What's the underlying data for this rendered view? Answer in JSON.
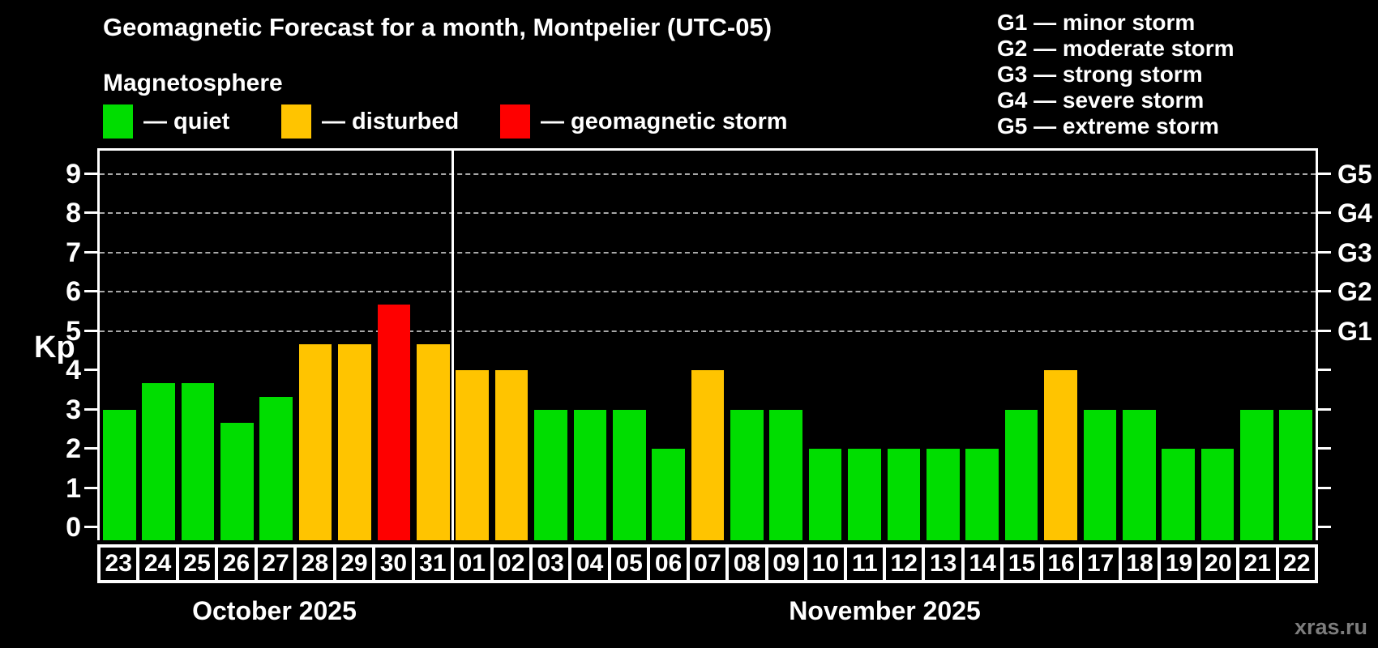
{
  "header": {
    "title": "Geomagnetic Forecast for a month, Montpelier (UTC-05)",
    "subtitle": "Magnetosphere"
  },
  "colors": {
    "quiet": "#00dd00",
    "disturbed": "#ffc400",
    "storm": "#fe0000",
    "grid": "#a8a8a8",
    "axis": "#ffffff",
    "background": "#000000",
    "watermark": "#7d7d7d"
  },
  "legend": {
    "items": [
      {
        "key": "quiet",
        "label": "— quiet"
      },
      {
        "key": "disturbed",
        "label": "— disturbed"
      },
      {
        "key": "storm",
        "label": "— geomagnetic storm"
      }
    ]
  },
  "storm_scale": [
    "G1 — minor storm",
    "G2 — moderate storm",
    "G3 — strong storm",
    "G4 — severe storm",
    "G5 — extreme storm"
  ],
  "watermark": "xras.ru",
  "chart_data": {
    "type": "bar",
    "title": "Geomagnetic Forecast for a month, Montpelier (UTC-05)",
    "subtitle": "Magnetosphere",
    "ylabel": "Kp",
    "ylim": [
      0,
      9.5
    ],
    "yticks": [
      0,
      1,
      2,
      3,
      4,
      5,
      6,
      7,
      8,
      9
    ],
    "grid": "dashed horizontal lines at Kp 5..9 only",
    "legend_position": "top-left",
    "right_axis": [
      {
        "kp": 5,
        "label": "G1"
      },
      {
        "kp": 6,
        "label": "G2"
      },
      {
        "kp": 7,
        "label": "G3"
      },
      {
        "kp": 8,
        "label": "G4"
      },
      {
        "kp": 9,
        "label": "G5"
      }
    ],
    "months": [
      {
        "label": "October 2025",
        "days": 9
      },
      {
        "label": "November 2025",
        "days": 22
      }
    ],
    "bars": [
      {
        "day": "23",
        "kp": 3,
        "status": "quiet"
      },
      {
        "day": "24",
        "kp": 3.67,
        "status": "quiet"
      },
      {
        "day": "25",
        "kp": 3.67,
        "status": "quiet"
      },
      {
        "day": "26",
        "kp": 2.67,
        "status": "quiet"
      },
      {
        "day": "27",
        "kp": 3.33,
        "status": "quiet"
      },
      {
        "day": "28",
        "kp": 4.67,
        "status": "disturbed"
      },
      {
        "day": "29",
        "kp": 4.67,
        "status": "disturbed"
      },
      {
        "day": "30",
        "kp": 5.67,
        "status": "storm"
      },
      {
        "day": "31",
        "kp": 4.67,
        "status": "disturbed"
      },
      {
        "day": "01",
        "kp": 4,
        "status": "disturbed"
      },
      {
        "day": "02",
        "kp": 4,
        "status": "disturbed"
      },
      {
        "day": "03",
        "kp": 3,
        "status": "quiet"
      },
      {
        "day": "04",
        "kp": 3,
        "status": "quiet"
      },
      {
        "day": "05",
        "kp": 3,
        "status": "quiet"
      },
      {
        "day": "06",
        "kp": 2,
        "status": "quiet"
      },
      {
        "day": "07",
        "kp": 4,
        "status": "disturbed"
      },
      {
        "day": "08",
        "kp": 3,
        "status": "quiet"
      },
      {
        "day": "09",
        "kp": 3,
        "status": "quiet"
      },
      {
        "day": "10",
        "kp": 2,
        "status": "quiet"
      },
      {
        "day": "11",
        "kp": 2,
        "status": "quiet"
      },
      {
        "day": "12",
        "kp": 2,
        "status": "quiet"
      },
      {
        "day": "13",
        "kp": 2,
        "status": "quiet"
      },
      {
        "day": "14",
        "kp": 2,
        "status": "quiet"
      },
      {
        "day": "15",
        "kp": 3,
        "status": "quiet"
      },
      {
        "day": "16",
        "kp": 4,
        "status": "disturbed"
      },
      {
        "day": "17",
        "kp": 3,
        "status": "quiet"
      },
      {
        "day": "18",
        "kp": 3,
        "status": "quiet"
      },
      {
        "day": "19",
        "kp": 2,
        "status": "quiet"
      },
      {
        "day": "20",
        "kp": 2,
        "status": "quiet"
      },
      {
        "day": "21",
        "kp": 3,
        "status": "quiet"
      },
      {
        "day": "22",
        "kp": 3,
        "status": "quiet"
      }
    ]
  }
}
